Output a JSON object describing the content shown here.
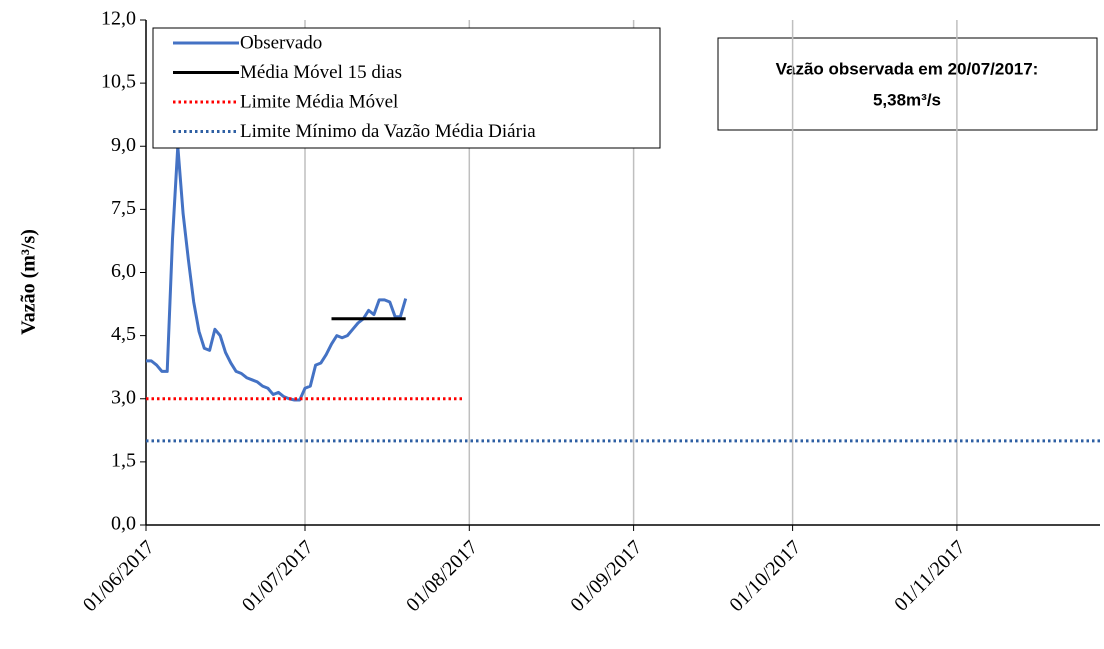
{
  "chart_data": {
    "type": "line",
    "ylabel": "Vazão (m³/s)",
    "annotation": [
      "Vazão observada em 20/07/2017:",
      "5,38m³/s"
    ],
    "annotation_color": "#ff0000",
    "xlim": [
      "2017-06-01",
      "2017-11-28"
    ],
    "xticks": [
      {
        "value": "2017-06-01",
        "label": "01/06/2017"
      },
      {
        "value": "2017-07-01",
        "label": "01/07/2017"
      },
      {
        "value": "2017-08-01",
        "label": "01/08/2017"
      },
      {
        "value": "2017-09-01",
        "label": "01/09/2017"
      },
      {
        "value": "2017-10-01",
        "label": "01/10/2017"
      },
      {
        "value": "2017-11-01",
        "label": "01/11/2017"
      }
    ],
    "ylim": [
      0,
      12
    ],
    "yticks": [
      {
        "value": 0,
        "label": "0,0"
      },
      {
        "value": 1.5,
        "label": "1,5"
      },
      {
        "value": 3,
        "label": "3,0"
      },
      {
        "value": 4.5,
        "label": "4,5"
      },
      {
        "value": 6,
        "label": "6,0"
      },
      {
        "value": 7.5,
        "label": "7,5"
      },
      {
        "value": 9,
        "label": "9,0"
      },
      {
        "value": 10.5,
        "label": "10,5"
      },
      {
        "value": 12,
        "label": "12,0"
      }
    ],
    "grid": "x",
    "legend": "top-left",
    "series": [
      {
        "name": "Observado",
        "color": "#4472c4",
        "style": "solid",
        "x": [
          "2017-06-01",
          "2017-06-02",
          "2017-06-03",
          "2017-06-04",
          "2017-06-05",
          "2017-06-06",
          "2017-06-07",
          "2017-06-08",
          "2017-06-09",
          "2017-06-10",
          "2017-06-11",
          "2017-06-12",
          "2017-06-13",
          "2017-06-14",
          "2017-06-15",
          "2017-06-16",
          "2017-06-17",
          "2017-06-18",
          "2017-06-19",
          "2017-06-20",
          "2017-06-21",
          "2017-06-22",
          "2017-06-23",
          "2017-06-24",
          "2017-06-25",
          "2017-06-26",
          "2017-06-27",
          "2017-06-28",
          "2017-06-29",
          "2017-06-30",
          "2017-07-01",
          "2017-07-02",
          "2017-07-03",
          "2017-07-04",
          "2017-07-05",
          "2017-07-06",
          "2017-07-07",
          "2017-07-08",
          "2017-07-09",
          "2017-07-10",
          "2017-07-11",
          "2017-07-12",
          "2017-07-13",
          "2017-07-14",
          "2017-07-15",
          "2017-07-16",
          "2017-07-17",
          "2017-07-18",
          "2017-07-19",
          "2017-07-20"
        ],
        "values": [
          3.9,
          3.9,
          3.8,
          3.65,
          3.65,
          6.8,
          9.0,
          7.4,
          6.3,
          5.3,
          4.6,
          4.2,
          4.15,
          4.65,
          4.5,
          4.1,
          3.85,
          3.65,
          3.6,
          3.5,
          3.45,
          3.4,
          3.3,
          3.25,
          3.1,
          3.15,
          3.05,
          3.0,
          2.97,
          2.97,
          3.25,
          3.3,
          3.8,
          3.85,
          4.05,
          4.3,
          4.5,
          4.45,
          4.5,
          4.65,
          4.8,
          4.9,
          5.1,
          5.0,
          5.35,
          5.35,
          5.3,
          4.95,
          4.95,
          5.38
        ]
      },
      {
        "name": "Média Móvel 15 dias",
        "color": "#000000",
        "style": "solid",
        "x": [
          "2017-07-06",
          "2017-07-20"
        ],
        "values": [
          4.9,
          4.9
        ]
      },
      {
        "name": "Limite Média Móvel",
        "color": "#ff0000",
        "style": "dotted",
        "x": [
          "2017-06-01",
          "2017-07-31"
        ],
        "values": [
          3,
          3
        ]
      },
      {
        "name": "Limite Mínimo da Vazão Média Diária",
        "color": "#2e5fa3",
        "style": "dotted",
        "x": [
          "2017-06-01",
          "2017-11-28"
        ],
        "values": [
          2,
          2
        ]
      }
    ]
  }
}
